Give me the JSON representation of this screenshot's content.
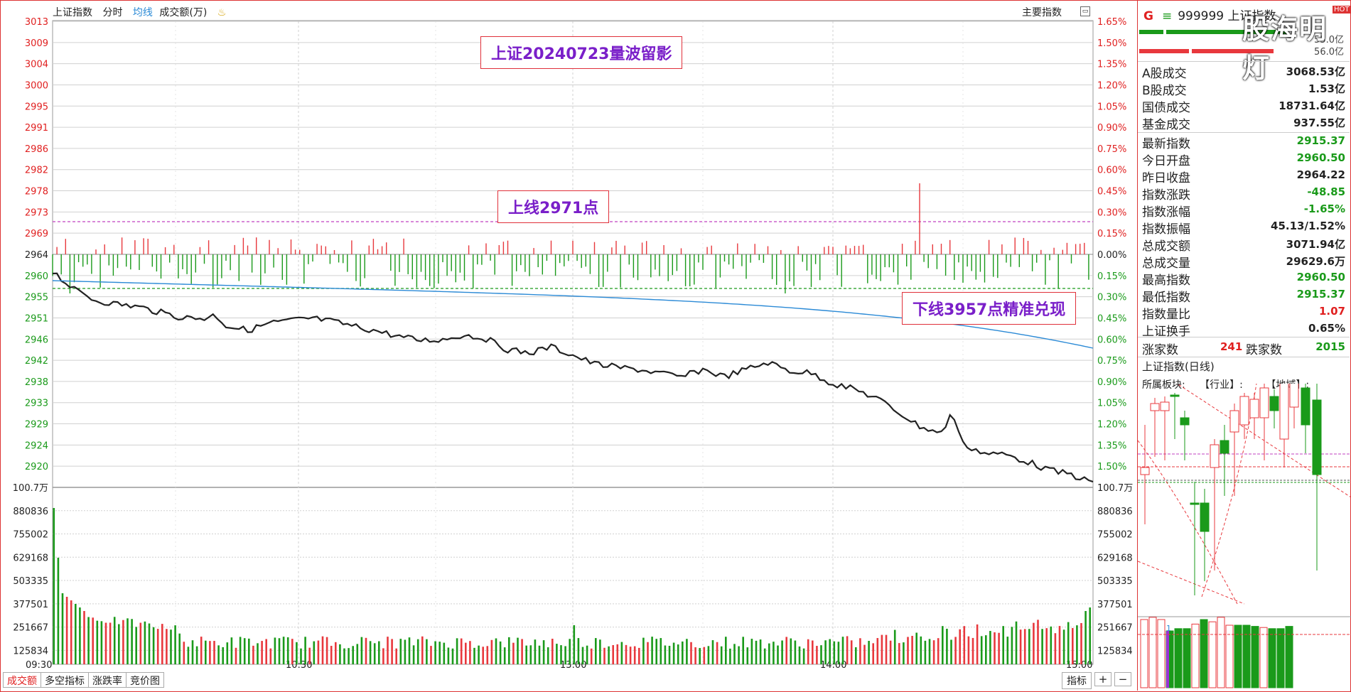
{
  "topbar": {
    "index_name": "上证指数",
    "view": "分时",
    "avg_line": "均线",
    "volume_label": "成交额(万)",
    "main_indicator": "主要指数",
    "main_indicator_icon": "window-icon",
    "alert_icon": "bell-icon"
  },
  "price_axis_left": [
    "3013",
    "3009",
    "3004",
    "3000",
    "2995",
    "2991",
    "2986",
    "2982",
    "2978",
    "2973",
    "2969",
    "2964",
    "2960",
    "2955",
    "2951",
    "2946",
    "2942",
    "2938",
    "2933",
    "2929",
    "2924",
    "2920"
  ],
  "price_axis_right": [
    "1.65%",
    "1.50%",
    "1.35%",
    "1.20%",
    "1.05%",
    "0.90%",
    "0.75%",
    "0.60%",
    "0.45%",
    "0.30%",
    "0.15%",
    "0.00%",
    "0.15%",
    "0.30%",
    "0.45%",
    "0.60%",
    "0.75%",
    "0.90%",
    "1.05%",
    "1.20%",
    "1.35%",
    "1.50%"
  ],
  "volume_axis": [
    "100.7万",
    "880836",
    "755002",
    "629168",
    "503335",
    "377501",
    "251667",
    "125834"
  ],
  "time_axis": [
    "09:30",
    "10:30",
    "13:00",
    "14:00",
    "15:00"
  ],
  "annotations": {
    "title": "上证20240723量波留影",
    "upper": "上线2971点",
    "lower": "下线3957点精准兑现"
  },
  "bottom_tabs": [
    "成交额",
    "多空指标",
    "涨跌率",
    "竞价图"
  ],
  "indicator_button": "指标",
  "plus": "+",
  "minus": "−",
  "colors": {
    "up": "#e8383d",
    "down": "#1a9a1a",
    "price_line": "#222222",
    "avg_line": "#2b8ad6",
    "upper_line": "#c040c0",
    "lower_line": "#1a9a1a",
    "grid": "#d0d0d0"
  },
  "right_panel": {
    "marker": "G",
    "icon": "list-icon",
    "code": "999999",
    "name": "上证指数",
    "flag": "HOT",
    "watermark": "股海明灯",
    "bars": [
      {
        "value": "55.0亿"
      },
      {
        "value": "56.0亿"
      }
    ],
    "stats1": [
      {
        "label": "A股成交",
        "value": "3068.53亿",
        "color": "#222"
      },
      {
        "label": "B股成交",
        "value": "1.53亿",
        "color": "#222"
      },
      {
        "label": "国债成交",
        "value": "18731.64亿",
        "color": "#222"
      },
      {
        "label": "基金成交",
        "value": "937.55亿",
        "color": "#222"
      }
    ],
    "stats2": [
      {
        "label": "最新指数",
        "value": "2915.37",
        "color": "#1a9a1a"
      },
      {
        "label": "今日开盘",
        "value": "2960.50",
        "color": "#1a9a1a"
      },
      {
        "label": "昨日收盘",
        "value": "2964.22",
        "color": "#222"
      },
      {
        "label": "指数涨跌",
        "value": "-48.85",
        "color": "#1a9a1a"
      },
      {
        "label": "指数涨幅",
        "value": "-1.65%",
        "color": "#1a9a1a"
      },
      {
        "label": "指数振幅",
        "value": "45.13/1.52%",
        "color": "#222"
      },
      {
        "label": "总成交额",
        "value": "3071.94亿",
        "color": "#222"
      },
      {
        "label": "总成交量",
        "value": "29629.6万",
        "color": "#222"
      },
      {
        "label": "最高指数",
        "value": "2960.50",
        "color": "#1a9a1a"
      },
      {
        "label": "最低指数",
        "value": "2915.37",
        "color": "#1a9a1a"
      },
      {
        "label": "指数量比",
        "value": "1.07",
        "color": "#e02020"
      },
      {
        "label": "上证换手",
        "value": "0.65%",
        "color": "#222"
      }
    ],
    "up_label": "涨家数",
    "up_count": "241",
    "down_label": "跌家数",
    "down_count": "2015",
    "kline_title": "上证指数(日线)",
    "sector_label": "所属板块:",
    "industry_label": "【行业】:",
    "region_label": "【地域】:",
    "volume_marker": "1"
  }
}
